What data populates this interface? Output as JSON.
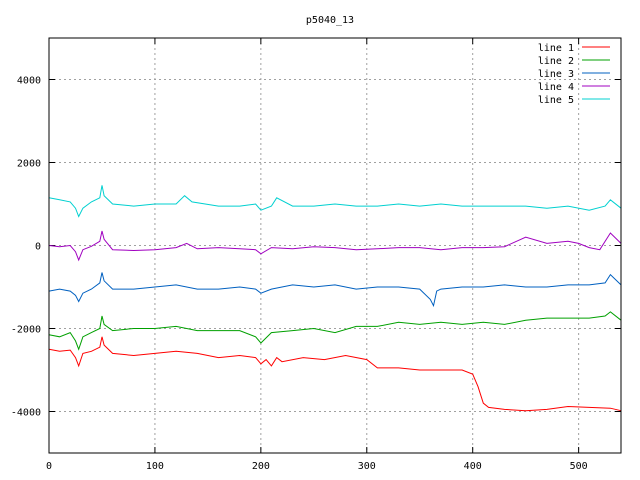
{
  "chart_data": {
    "type": "line",
    "title": "p5040_13",
    "xlabel": "",
    "ylabel": "",
    "xlim": [
      0,
      540
    ],
    "ylim": [
      -5000,
      5000
    ],
    "x_ticks": [
      0,
      100,
      200,
      300,
      400,
      500
    ],
    "y_ticks": [
      -4000,
      -2000,
      0,
      2000,
      4000
    ],
    "grid": true,
    "legend_position": "top-right",
    "series": [
      {
        "name": "line 1",
        "color": "#ff0000",
        "points": [
          [
            0,
            -2500
          ],
          [
            10,
            -2550
          ],
          [
            20,
            -2520
          ],
          [
            25,
            -2700
          ],
          [
            28,
            -2900
          ],
          [
            32,
            -2600
          ],
          [
            40,
            -2550
          ],
          [
            48,
            -2450
          ],
          [
            50,
            -2200
          ],
          [
            52,
            -2400
          ],
          [
            60,
            -2600
          ],
          [
            80,
            -2650
          ],
          [
            100,
            -2600
          ],
          [
            120,
            -2550
          ],
          [
            140,
            -2600
          ],
          [
            160,
            -2700
          ],
          [
            180,
            -2650
          ],
          [
            195,
            -2700
          ],
          [
            200,
            -2850
          ],
          [
            205,
            -2750
          ],
          [
            210,
            -2900
          ],
          [
            215,
            -2700
          ],
          [
            220,
            -2800
          ],
          [
            240,
            -2700
          ],
          [
            260,
            -2750
          ],
          [
            280,
            -2650
          ],
          [
            300,
            -2750
          ],
          [
            310,
            -2950
          ],
          [
            330,
            -2950
          ],
          [
            350,
            -3000
          ],
          [
            370,
            -3000
          ],
          [
            390,
            -3000
          ],
          [
            400,
            -3100
          ],
          [
            405,
            -3400
          ],
          [
            410,
            -3800
          ],
          [
            415,
            -3900
          ],
          [
            430,
            -3950
          ],
          [
            450,
            -3980
          ],
          [
            470,
            -3950
          ],
          [
            490,
            -3880
          ],
          [
            510,
            -3900
          ],
          [
            530,
            -3920
          ],
          [
            540,
            -3980
          ]
        ]
      },
      {
        "name": "line 2",
        "color": "#00a000",
        "points": [
          [
            0,
            -2150
          ],
          [
            10,
            -2200
          ],
          [
            20,
            -2100
          ],
          [
            25,
            -2300
          ],
          [
            28,
            -2500
          ],
          [
            32,
            -2200
          ],
          [
            40,
            -2100
          ],
          [
            48,
            -2000
          ],
          [
            50,
            -1700
          ],
          [
            52,
            -1900
          ],
          [
            60,
            -2050
          ],
          [
            80,
            -2000
          ],
          [
            100,
            -2000
          ],
          [
            120,
            -1950
          ],
          [
            140,
            -2050
          ],
          [
            160,
            -2050
          ],
          [
            180,
            -2050
          ],
          [
            195,
            -2200
          ],
          [
            200,
            -2350
          ],
          [
            210,
            -2100
          ],
          [
            230,
            -2050
          ],
          [
            250,
            -2000
          ],
          [
            270,
            -2100
          ],
          [
            290,
            -1950
          ],
          [
            310,
            -1950
          ],
          [
            330,
            -1850
          ],
          [
            350,
            -1900
          ],
          [
            370,
            -1850
          ],
          [
            390,
            -1900
          ],
          [
            410,
            -1850
          ],
          [
            430,
            -1900
          ],
          [
            450,
            -1800
          ],
          [
            470,
            -1750
          ],
          [
            490,
            -1750
          ],
          [
            510,
            -1750
          ],
          [
            525,
            -1700
          ],
          [
            530,
            -1600
          ],
          [
            540,
            -1800
          ]
        ]
      },
      {
        "name": "line 3",
        "color": "#0060c0",
        "points": [
          [
            0,
            -1100
          ],
          [
            10,
            -1050
          ],
          [
            20,
            -1100
          ],
          [
            25,
            -1200
          ],
          [
            28,
            -1350
          ],
          [
            32,
            -1150
          ],
          [
            40,
            -1050
          ],
          [
            48,
            -900
          ],
          [
            50,
            -650
          ],
          [
            52,
            -850
          ],
          [
            60,
            -1050
          ],
          [
            80,
            -1050
          ],
          [
            100,
            -1000
          ],
          [
            120,
            -950
          ],
          [
            140,
            -1050
          ],
          [
            160,
            -1050
          ],
          [
            180,
            -1000
          ],
          [
            195,
            -1050
          ],
          [
            200,
            -1150
          ],
          [
            210,
            -1050
          ],
          [
            230,
            -950
          ],
          [
            250,
            -1000
          ],
          [
            270,
            -950
          ],
          [
            290,
            -1050
          ],
          [
            310,
            -1000
          ],
          [
            330,
            -1000
          ],
          [
            350,
            -1050
          ],
          [
            360,
            -1300
          ],
          [
            363,
            -1450
          ],
          [
            366,
            -1100
          ],
          [
            370,
            -1050
          ],
          [
            390,
            -1000
          ],
          [
            410,
            -1000
          ],
          [
            430,
            -950
          ],
          [
            450,
            -1000
          ],
          [
            470,
            -1000
          ],
          [
            490,
            -950
          ],
          [
            510,
            -950
          ],
          [
            525,
            -900
          ],
          [
            530,
            -700
          ],
          [
            540,
            -950
          ]
        ]
      },
      {
        "name": "line 4",
        "color": "#a000c0",
        "points": [
          [
            0,
            0
          ],
          [
            10,
            -30
          ],
          [
            20,
            0
          ],
          [
            25,
            -150
          ],
          [
            28,
            -350
          ],
          [
            32,
            -100
          ],
          [
            40,
            -20
          ],
          [
            48,
            100
          ],
          [
            50,
            350
          ],
          [
            52,
            150
          ],
          [
            60,
            -100
          ],
          [
            80,
            -120
          ],
          [
            100,
            -100
          ],
          [
            120,
            -50
          ],
          [
            130,
            50
          ],
          [
            140,
            -80
          ],
          [
            160,
            -50
          ],
          [
            180,
            -80
          ],
          [
            195,
            -100
          ],
          [
            200,
            -200
          ],
          [
            210,
            -50
          ],
          [
            230,
            -80
          ],
          [
            250,
            -30
          ],
          [
            270,
            -50
          ],
          [
            290,
            -100
          ],
          [
            310,
            -80
          ],
          [
            330,
            -50
          ],
          [
            350,
            -50
          ],
          [
            370,
            -100
          ],
          [
            390,
            -50
          ],
          [
            410,
            -50
          ],
          [
            430,
            -30
          ],
          [
            450,
            200
          ],
          [
            470,
            50
          ],
          [
            490,
            100
          ],
          [
            500,
            50
          ],
          [
            510,
            -50
          ],
          [
            520,
            -100
          ],
          [
            530,
            300
          ],
          [
            540,
            50
          ]
        ]
      },
      {
        "name": "line 5",
        "color": "#00d0d0",
        "points": [
          [
            0,
            1150
          ],
          [
            10,
            1100
          ],
          [
            20,
            1050
          ],
          [
            25,
            900
          ],
          [
            28,
            700
          ],
          [
            32,
            900
          ],
          [
            40,
            1050
          ],
          [
            48,
            1150
          ],
          [
            50,
            1450
          ],
          [
            52,
            1200
          ],
          [
            60,
            1000
          ],
          [
            80,
            950
          ],
          [
            100,
            1000
          ],
          [
            120,
            1000
          ],
          [
            128,
            1200
          ],
          [
            135,
            1050
          ],
          [
            160,
            950
          ],
          [
            180,
            950
          ],
          [
            195,
            1000
          ],
          [
            200,
            850
          ],
          [
            210,
            950
          ],
          [
            215,
            1150
          ],
          [
            230,
            950
          ],
          [
            250,
            950
          ],
          [
            270,
            1000
          ],
          [
            290,
            950
          ],
          [
            310,
            950
          ],
          [
            330,
            1000
          ],
          [
            350,
            950
          ],
          [
            370,
            1000
          ],
          [
            390,
            950
          ],
          [
            410,
            950
          ],
          [
            430,
            950
          ],
          [
            450,
            950
          ],
          [
            470,
            900
          ],
          [
            490,
            950
          ],
          [
            510,
            850
          ],
          [
            525,
            950
          ],
          [
            530,
            1100
          ],
          [
            540,
            900
          ]
        ]
      }
    ]
  }
}
